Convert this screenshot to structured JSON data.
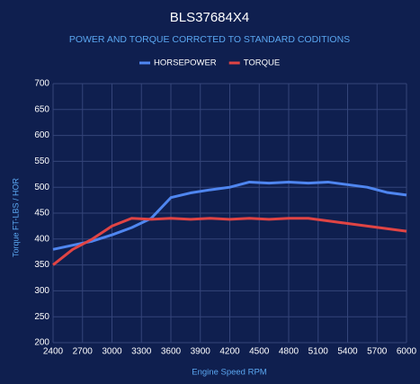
{
  "chart_data": {
    "type": "line",
    "title": "BLS37684X4",
    "subtitle": "POWER AND TORQUE CORRCTED TO STANDARD CODITIONS",
    "x_label": "Engine Speed RPM",
    "y_label": "Torque FT-LBS / HOR",
    "x": [
      2400,
      2600,
      2800,
      3000,
      3200,
      3400,
      3600,
      3800,
      4000,
      4200,
      4400,
      4600,
      4800,
      5000,
      5200,
      5400,
      5600,
      5800,
      6000
    ],
    "series": [
      {
        "name": "HORSEPOWER",
        "color": "#4f86f0",
        "values": [
          380,
          388,
          396,
          408,
          422,
          440,
          480,
          489,
          495,
          500,
          510,
          508,
          510,
          508,
          510,
          505,
          500,
          490,
          485
        ]
      },
      {
        "name": "TORQUE",
        "color": "#e04444",
        "values": [
          350,
          380,
          400,
          425,
          440,
          438,
          440,
          438,
          440,
          438,
          440,
          438,
          440,
          440,
          435,
          430,
          425,
          420,
          415
        ]
      }
    ],
    "xlim": [
      2400,
      6000
    ],
    "xticks": [
      2400,
      2700,
      3000,
      3300,
      3600,
      3900,
      4200,
      4500,
      4800,
      5100,
      5400,
      5700,
      6000
    ],
    "ylim": [
      200,
      700
    ],
    "yticks": [
      200,
      250,
      300,
      350,
      400,
      450,
      500,
      550,
      600,
      650,
      700
    ],
    "grid": true,
    "legend": "top"
  }
}
